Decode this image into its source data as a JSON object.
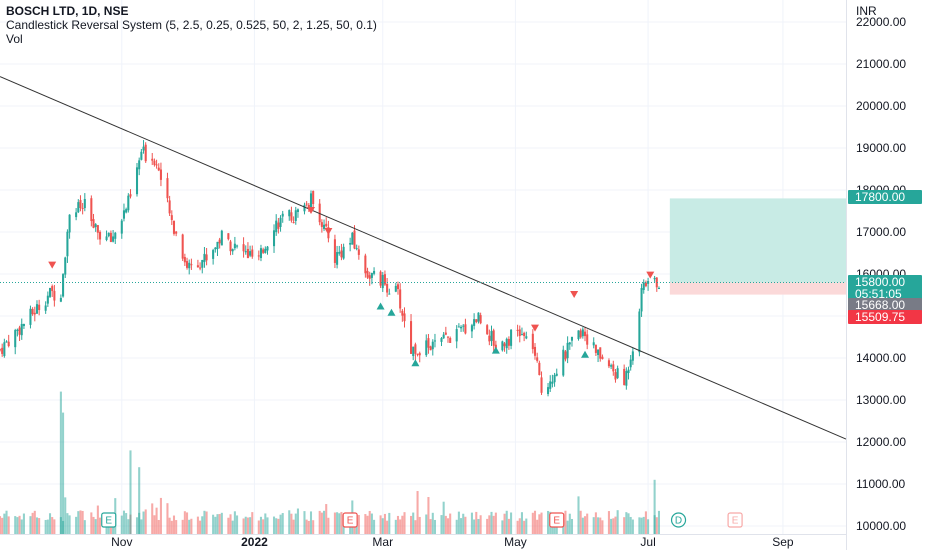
{
  "symbol": {
    "title": "BOSCH LTD, 1D, NSE",
    "indicator": "Candlestick Reversal System (5, 2.5, 0.25, 0.525, 50, 2, 1.25, 50, 0.1)",
    "volume_label": "Vol"
  },
  "axis": {
    "currency": "INR",
    "price_ticks": [
      "22000.00",
      "21000.00",
      "20000.00",
      "19000.00",
      "18000.00",
      "17000.00",
      "16000.00",
      "15000.00",
      "14000.00",
      "13000.00",
      "12000.00",
      "11000.00",
      "10000.00"
    ],
    "date_ticks": [
      {
        "label": "Nov",
        "date": "2021-11-01",
        "bold": false
      },
      {
        "label": "2022",
        "date": "2022-01-01",
        "bold": true
      },
      {
        "label": "Mar",
        "date": "2022-03-01",
        "bold": false
      },
      {
        "label": "May",
        "date": "2022-05-01",
        "bold": false
      },
      {
        "label": "Jul",
        "date": "2022-07-01",
        "bold": false
      },
      {
        "label": "Sep",
        "date": "2022-09-01",
        "bold": false
      }
    ]
  },
  "price_tags": {
    "target": "17800.00",
    "current": "15800.00",
    "countdown": "05:51:05",
    "prev": "15668.00",
    "stop": "15509.75"
  },
  "colors": {
    "up": "#26a69a",
    "down": "#ef5350",
    "line": "#333333",
    "grid": "#f0f3fa",
    "target_zone": "#c8ebe5",
    "stop_zone": "#fbd9d9",
    "current_tag": "#26a69a",
    "prev_tag": "#787b86",
    "stop_tag": "#f23645",
    "event_e": "#26a69a",
    "event_e_red": "#ef5350"
  },
  "events": [
    {
      "type": "E",
      "date": "2021-10-26",
      "color": "green"
    },
    {
      "type": "E",
      "date": "2022-02-14",
      "color": "red"
    },
    {
      "type": "E",
      "date": "2022-05-20",
      "color": "red"
    },
    {
      "type": "D",
      "date": "2022-07-15",
      "color": "green"
    },
    {
      "type": "E",
      "date": "2022-08-10",
      "color": "red-light"
    }
  ],
  "chart_data": {
    "type": "candlestick",
    "title": "BOSCH LTD, 1D, NSE",
    "currency": "INR",
    "ylim": [
      10000,
      22000
    ],
    "x_range": [
      "2021-09-06",
      "2022-09-30"
    ],
    "trend_line": [
      [
        "2021-09-06",
        20700
      ],
      [
        "2022-09-30",
        12070
      ]
    ],
    "position": {
      "entry": 15800,
      "target": 17800,
      "stop": 15509.75,
      "start": "2022-07-11",
      "end": "2022-09-30"
    },
    "last_price": 15800,
    "prev_close": 15668,
    "anchors": [
      [
        "2021-09-06",
        14200
      ],
      [
        "2021-09-20",
        15000
      ],
      [
        "2021-09-28",
        15500
      ],
      [
        "2021-10-04",
        15600
      ],
      [
        "2021-10-08",
        17500
      ],
      [
        "2021-10-15",
        17600
      ],
      [
        "2021-10-20",
        17000
      ],
      [
        "2021-10-27",
        16800
      ],
      [
        "2021-11-05",
        17800
      ],
      [
        "2021-11-10",
        18900
      ],
      [
        "2021-11-17",
        18700
      ],
      [
        "2021-11-23",
        17400
      ],
      [
        "2021-12-01",
        16200
      ],
      [
        "2021-12-10",
        16400
      ],
      [
        "2021-12-17",
        16900
      ],
      [
        "2021-12-24",
        16600
      ],
      [
        "2022-01-03",
        16300
      ],
      [
        "2022-01-10",
        17200
      ],
      [
        "2022-01-20",
        17400
      ],
      [
        "2022-01-28",
        17800
      ],
      [
        "2022-02-07",
        16400
      ],
      [
        "2022-02-15",
        16800
      ],
      [
        "2022-02-22",
        16000
      ],
      [
        "2022-03-01",
        15800
      ],
      [
        "2022-03-08",
        15500
      ],
      [
        "2022-03-14",
        14200
      ],
      [
        "2022-03-25",
        14300
      ],
      [
        "2022-04-05",
        14600
      ],
      [
        "2022-04-14",
        15000
      ],
      [
        "2022-04-22",
        14300
      ],
      [
        "2022-05-02",
        14600
      ],
      [
        "2022-05-09",
        14300
      ],
      [
        "2022-05-13",
        13200
      ],
      [
        "2022-05-24",
        14100
      ],
      [
        "2022-06-01",
        14700
      ],
      [
        "2022-06-06",
        14200
      ],
      [
        "2022-06-13",
        13800
      ],
      [
        "2022-06-20",
        13400
      ],
      [
        "2022-06-24",
        14300
      ],
      [
        "2022-06-29",
        15800
      ],
      [
        "2022-07-06",
        15800
      ]
    ],
    "reversal_signals_down": [
      [
        "2021-09-30",
        16200
      ],
      [
        "2022-01-27",
        17500
      ],
      [
        "2022-02-04",
        17000
      ],
      [
        "2022-05-10",
        14700
      ],
      [
        "2022-05-28",
        15500
      ],
      [
        "2022-07-02",
        15960
      ]
    ],
    "reversal_signals_up": [
      [
        "2022-02-28",
        15250
      ],
      [
        "2022-03-05",
        15100
      ],
      [
        "2022-03-16",
        13900
      ],
      [
        "2022-04-22",
        14200
      ],
      [
        "2022-06-02",
        14100
      ]
    ],
    "volume_spikes": [
      [
        "2021-10-04",
        13200
      ],
      [
        "2021-10-05",
        12700
      ],
      [
        "2021-11-05",
        11800
      ],
      [
        "2021-11-09",
        11400
      ],
      [
        "2022-07-04",
        11100
      ]
    ]
  }
}
